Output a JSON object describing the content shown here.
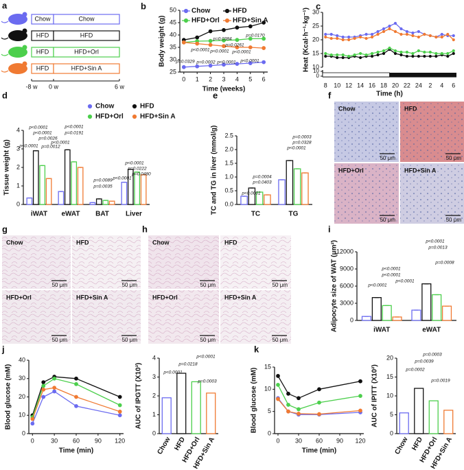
{
  "chart_data": [
    {
      "type": "line",
      "panel": "b",
      "x_label": "Time (weeks)",
      "y_label": "Body weight (g)",
      "x": [
        0,
        1,
        2,
        3,
        4,
        5,
        6
      ],
      "xlim": [
        -0.3,
        6.3
      ],
      "xticks": [
        0,
        1,
        2,
        3,
        4,
        5,
        6
      ],
      "ylim": [
        25,
        50
      ],
      "yticks": [
        25,
        30,
        35,
        40,
        45,
        50
      ],
      "legend": true,
      "series": [
        {
          "name": "Chow",
          "color": "#6b6bf0",
          "values": [
            27,
            27.3,
            27.6,
            28,
            28.3,
            28.6,
            29
          ]
        },
        {
          "name": "HFD",
          "color": "#111111",
          "values": [
            38,
            39,
            41.5,
            42,
            43,
            43.5,
            45
          ]
        },
        {
          "name": "HFD+Orl",
          "color": "#4ccf4c",
          "values": [
            37,
            37.5,
            37.6,
            37.8,
            38,
            38.5,
            38.5
          ]
        },
        {
          "name": "HFD+Sin A",
          "color": "#f07a32",
          "values": [
            37,
            36.5,
            36,
            35.5,
            35,
            35,
            34.7
          ]
        }
      ],
      "annotations": [
        "p=0.0170",
        "p=0.0384",
        "p=0.0261",
        "p<0.0001",
        "p<0.0001",
        "p<0.0001",
        "p=0.0329",
        "p=0.0002",
        "p<0.0001",
        "p<0.0001"
      ]
    },
    {
      "type": "line",
      "panel": "c",
      "x_label": "Time (h)",
      "y_label": "Heat (Kcal·h⁻¹·kg⁻¹)",
      "categories": [
        "8",
        null,
        "10",
        null,
        "12",
        null,
        "14",
        null,
        "16",
        null,
        "18",
        null,
        "20",
        null,
        "22",
        null,
        "24",
        null,
        "2",
        null,
        "4",
        null,
        "6"
      ],
      "ylim": [
        10,
        30
      ],
      "yticks": [
        10,
        15,
        20,
        25,
        30
      ],
      "ylim_lower": [
        0,
        10
      ],
      "yticks_lower": [
        0,
        10
      ],
      "legend": false,
      "series": [
        {
          "color": "#6b6bf0",
          "values": [
            22,
            22,
            21.5,
            21,
            21,
            21,
            21.5,
            22,
            22,
            23,
            24,
            25,
            26,
            24,
            23,
            22.5,
            23,
            22,
            21.5,
            21,
            22,
            21.5,
            21.5
          ]
        },
        {
          "color": "#111111",
          "values": [
            14,
            14,
            13.5,
            13.5,
            13.5,
            14,
            13.5,
            14,
            14,
            14.5,
            15,
            16.5,
            15,
            14.5,
            14,
            14,
            14,
            14,
            14,
            14,
            14.5,
            14,
            15
          ]
        },
        {
          "color": "#4ccf4c",
          "values": [
            15,
            14.5,
            14.5,
            14.5,
            14,
            14.5,
            15,
            14.5,
            15,
            15.5,
            16,
            17,
            16,
            15.5,
            15.5,
            15,
            16,
            15.5,
            15.5,
            15,
            15,
            15,
            16
          ]
        },
        {
          "color": "#f07a32",
          "values": [
            21,
            20.5,
            20.5,
            20,
            20,
            20.5,
            21,
            20.5,
            21,
            22,
            23,
            24,
            23,
            22,
            22,
            21.5,
            21,
            22,
            21.5,
            21,
            21,
            22,
            20
          ]
        }
      ]
    },
    {
      "type": "bar",
      "panel": "d",
      "y_label": "Tissue weight (g)",
      "categories": [
        "iWAT",
        "eWAT",
        "BAT",
        "Liver"
      ],
      "ylim": [
        0,
        4
      ],
      "yticks": [
        0,
        1,
        2,
        3,
        4
      ],
      "legend": true,
      "series": [
        {
          "name": "Chow",
          "color": "#6b6bf0",
          "values": [
            0.35,
            0.7,
            0.1,
            1.2
          ]
        },
        {
          "name": "HFD",
          "color": "#111111",
          "values": [
            2.9,
            2.95,
            0.3,
            1.9
          ]
        },
        {
          "name": "HFD+Orl",
          "color": "#4ccf4c",
          "values": [
            2.1,
            2.3,
            0.22,
            1.75
          ]
        },
        {
          "name": "HFD+Sin A",
          "color": "#f07a32",
          "values": [
            1.4,
            2.0,
            0.18,
            1.6
          ]
        }
      ],
      "annotations": [
        "p<0.0001",
        "p<0.0001",
        "p=0.0026",
        "p<0.0001",
        "p=0.0012",
        "p<0.0001",
        "p=0.0191",
        "p<0.0001",
        "p=0.0089",
        "p=0.0035",
        "p<0.0001",
        "p=0.0222",
        "p=0.0480",
        "p<0.0001"
      ]
    },
    {
      "type": "bar",
      "panel": "e",
      "y_label": "TC and TG in liver (mmol/g)",
      "categories": [
        "TC",
        "TG"
      ],
      "ylim": [
        0,
        2.5
      ],
      "yticks": [
        {
          "value": 0,
          "label": "0.0"
        },
        0.5,
        {
          "value": 1,
          "label": "1.0"
        },
        1.5,
        {
          "value": 2,
          "label": "2.0"
        },
        2.5
      ],
      "series": [
        {
          "color": "#6b6bf0",
          "values": [
            0.3,
            0.9
          ]
        },
        {
          "color": "#111111",
          "values": [
            0.6,
            1.6
          ]
        },
        {
          "color": "#4ccf4c",
          "values": [
            0.45,
            1.3
          ]
        },
        {
          "color": "#f07a32",
          "values": [
            0.35,
            1.15
          ]
        }
      ],
      "annotations": [
        "p=0.0004",
        "p=0.0403",
        "p<0.0001",
        "p=0.0003",
        "p=0.0328",
        "p<0.0001"
      ]
    },
    {
      "type": "bar",
      "panel": "i",
      "y_label": "Adipocyte size of WAT (μm²)",
      "categories": [
        "iWAT",
        "eWAT"
      ],
      "ylim": [
        0,
        12000
      ],
      "yticks": [
        0,
        3000,
        6000,
        9000,
        12000
      ],
      "series": [
        {
          "color": "#6b6bf0",
          "values": [
            700,
            1800
          ]
        },
        {
          "color": "#111111",
          "values": [
            4000,
            6400
          ]
        },
        {
          "color": "#4ccf4c",
          "values": [
            2600,
            4500
          ]
        },
        {
          "color": "#f07a32",
          "values": [
            600,
            2500
          ]
        }
      ],
      "annotations": [
        "p<0.0001",
        "p<0.0001",
        "p<0.0001",
        "p<0.0001",
        "p<0.0001",
        "p=0.0013",
        "p=0.0008"
      ]
    },
    {
      "type": "line",
      "panel": "j",
      "x_label": "Time (min)",
      "y_label": "Blood glucose (mM)",
      "x": [
        0,
        15,
        30,
        60,
        120
      ],
      "xlim": [
        -5,
        125
      ],
      "xticks": [
        0,
        30,
        60,
        90,
        120
      ],
      "ylim": [
        0,
        40
      ],
      "yticks": [
        0,
        10,
        20,
        30,
        40
      ],
      "series": [
        {
          "color": "#6b6bf0",
          "values": [
            5.5,
            20,
            23,
            15,
            10
          ]
        },
        {
          "color": "#111111",
          "values": [
            10,
            28,
            31,
            30,
            20
          ]
        },
        {
          "color": "#4ccf4c",
          "values": [
            9,
            26,
            30,
            27,
            15.5
          ]
        },
        {
          "color": "#f07a32",
          "values": [
            8,
            24,
            25,
            20,
            12
          ]
        }
      ]
    },
    {
      "type": "bar",
      "y_label": "AUC of IPGTT (X10³)",
      "categories": [
        "Chow",
        "HFD",
        "HFD+Orl",
        "HFD+Sin A"
      ],
      "values": [
        1.9,
        3.2,
        2.75,
        2.15
      ],
      "colors": [
        "#6b6bf0",
        "#111111",
        "#4ccf4c",
        "#f07a32"
      ],
      "ylim": [
        0,
        4
      ],
      "yticks": [
        0,
        1,
        2,
        3,
        4
      ],
      "annotations": [
        "p<0.0001",
        "p=0.0218",
        "p<0.0001",
        "p=0.0003"
      ]
    },
    {
      "type": "line",
      "panel": "k",
      "x_label": "Time (min)",
      "y_label": "Blood glucose (mM)",
      "x": [
        0,
        15,
        30,
        60,
        120
      ],
      "xlim": [
        -5,
        125
      ],
      "xticks": [
        0,
        30,
        60,
        90,
        120
      ],
      "ylim": [
        0,
        15
      ],
      "yticks": [
        0,
        5,
        10,
        15
      ],
      "series": [
        {
          "color": "#6b6bf0",
          "values": [
            8,
            5,
            4.3,
            4.3,
            4.8
          ]
        },
        {
          "color": "#111111",
          "values": [
            13,
            9,
            8,
            10,
            11.8
          ]
        },
        {
          "color": "#4ccf4c",
          "values": [
            11,
            6.5,
            5.5,
            7,
            8.5
          ]
        },
        {
          "color": "#f07a32",
          "values": [
            7.8,
            5,
            4.5,
            4.4,
            5.2
          ]
        }
      ]
    },
    {
      "type": "bar",
      "y_label": "AUC of IPITT (X10²)",
      "categories": [
        "Chow",
        "HFD",
        "HFD+Orl",
        "HFD+Sin A"
      ],
      "values": [
        5.5,
        12,
        8.7,
        6.2
      ],
      "colors": [
        "#6b6bf0",
        "#111111",
        "#4ccf4c",
        "#f07a32"
      ],
      "ylim": [
        0,
        20
      ],
      "yticks": [
        0,
        5,
        10,
        15,
        20
      ],
      "annotations": [
        "p=0.0003",
        "p=0.0039",
        "p=0.0002",
        "p=0.0019"
      ]
    }
  ],
  "diagram": {
    "panel": "a",
    "rows": [
      {
        "pre": "Chow",
        "diet": "Chow",
        "color": "#6b6bf0"
      },
      {
        "pre": "HFD",
        "diet": "HFD",
        "color": "#111111"
      },
      {
        "pre": "HFD",
        "diet": "HFD+Orl",
        "color": "#4ccf4c"
      },
      {
        "pre": "HFD",
        "diet": "HFD+Sin A",
        "color": "#f07a32"
      }
    ],
    "timeline": [
      "-8 w",
      "0 w",
      "6 w"
    ]
  },
  "images": [
    {
      "panel": "f",
      "tiles": [
        {
          "label": "Chow",
          "scale": "50 μm",
          "fill": "#c6c9e4"
        },
        {
          "label": "HFD",
          "scale": "50 μm",
          "fill": "#d98c8f"
        },
        {
          "label": "HFD+Orl",
          "scale": "50 μm",
          "fill": "#dab3c6"
        },
        {
          "label": "HFD+Sin A",
          "scale": "50 μm",
          "fill": "#cfcde2"
        }
      ]
    },
    {
      "panel": "g",
      "tiles": [
        {
          "label": "Chow",
          "scale": "50 μm",
          "fill": "#f1e9ef"
        },
        {
          "label": "HFD",
          "scale": "50 μm",
          "fill": "#f5f0f3"
        },
        {
          "label": "HFD+Orl",
          "scale": "50 μm",
          "fill": "#f0e9ee"
        },
        {
          "label": "HFD+Sin A",
          "scale": "50 μm",
          "fill": "#f1eaef"
        }
      ]
    },
    {
      "panel": "h",
      "tiles": [
        {
          "label": "Chow",
          "scale": "50 μm",
          "fill": "#f0e4ec"
        },
        {
          "label": "HFD",
          "scale": "50 μm",
          "fill": "#f6f1f4"
        },
        {
          "label": "HFD+Orl",
          "scale": "50 μm",
          "fill": "#f2e8ee"
        },
        {
          "label": "HFD+Sin A",
          "scale": "50 μm",
          "fill": "#f4eef2"
        }
      ]
    }
  ]
}
